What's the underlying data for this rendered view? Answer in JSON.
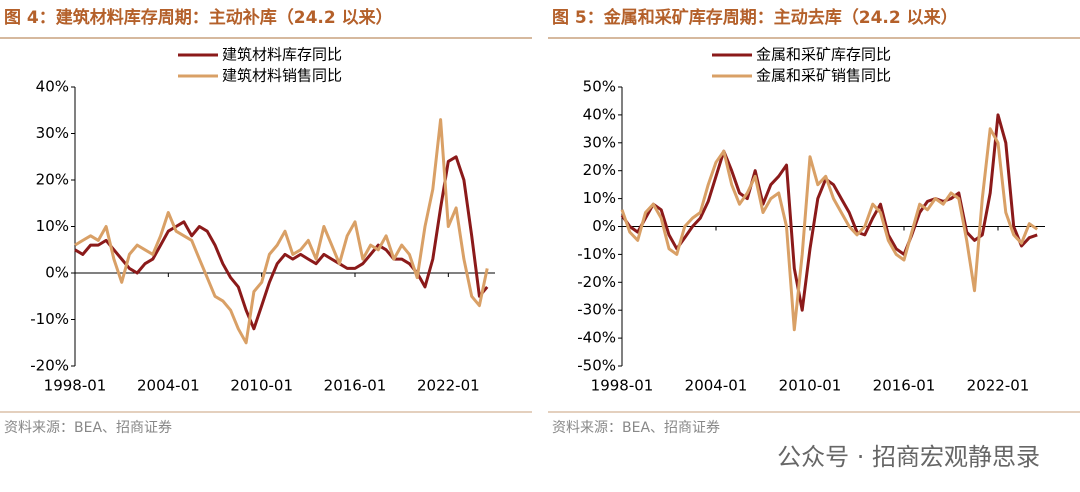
{
  "chart_data": [
    {
      "type": "line",
      "title": "图 4：建筑材料库存周期：主动补库（24.2 以来）",
      "source": "资料来源：BEA、招商证券",
      "x": [
        "1998-01",
        "1998-07",
        "1999-01",
        "1999-07",
        "2000-01",
        "2000-07",
        "2001-01",
        "2001-07",
        "2002-01",
        "2002-07",
        "2003-01",
        "2003-07",
        "2004-01",
        "2004-07",
        "2005-01",
        "2005-07",
        "2006-01",
        "2006-07",
        "2007-01",
        "2007-07",
        "2008-01",
        "2008-07",
        "2009-01",
        "2009-07",
        "2010-01",
        "2010-07",
        "2011-01",
        "2011-07",
        "2012-01",
        "2012-07",
        "2013-01",
        "2013-07",
        "2014-01",
        "2014-07",
        "2015-01",
        "2015-07",
        "2016-01",
        "2016-07",
        "2017-01",
        "2017-07",
        "2018-01",
        "2018-07",
        "2019-01",
        "2019-07",
        "2020-01",
        "2020-07",
        "2021-01",
        "2021-07",
        "2022-01",
        "2022-07",
        "2023-01",
        "2023-07",
        "2024-01",
        "2024-07"
      ],
      "series": [
        {
          "name": "建筑材料库存同比",
          "color": "#8b1a1a",
          "values": [
            5,
            4,
            6,
            6,
            7,
            5,
            3,
            1,
            0,
            2,
            3,
            6,
            9,
            10,
            11,
            8,
            10,
            9,
            6,
            2,
            -1,
            -3,
            -8,
            -12,
            -7,
            -2,
            2,
            4,
            3,
            4,
            3,
            2,
            4,
            3,
            2,
            1,
            1,
            2,
            4,
            6,
            5,
            3,
            3,
            2,
            0,
            -3,
            3,
            14,
            24,
            25,
            20,
            8,
            -5,
            -3
          ]
        },
        {
          "name": "建筑材料销售同比",
          "color": "#d9a066",
          "values": [
            6,
            7,
            8,
            7,
            10,
            3,
            -2,
            4,
            6,
            5,
            4,
            8,
            13,
            9,
            8,
            7,
            3,
            -1,
            -5,
            -6,
            -8,
            -12,
            -15,
            -4,
            -2,
            4,
            6,
            9,
            4,
            5,
            7,
            3,
            10,
            6,
            2,
            8,
            11,
            3,
            6,
            5,
            8,
            3,
            6,
            4,
            -1,
            10,
            18,
            33,
            10,
            14,
            3,
            -5,
            -7,
            1
          ]
        }
      ],
      "xlim": [
        "1998-01",
        "2025-01"
      ],
      "xticks": [
        "1998-01",
        "2004-01",
        "2010-01",
        "2016-01",
        "2022-01"
      ],
      "ylim": [
        -20,
        40
      ],
      "yticks": [
        {
          "value": -20,
          "label": "-20%"
        },
        {
          "value": -10,
          "label": "-10%"
        },
        {
          "value": 0,
          "label": "0%"
        },
        {
          "value": 10,
          "label": "10%"
        },
        {
          "value": 20,
          "label": "20%"
        },
        {
          "value": 30,
          "label": "30%"
        },
        {
          "value": 40,
          "label": "40%"
        }
      ]
    },
    {
      "type": "line",
      "title": "图 5：金属和采矿库存周期：主动去库（24.2 以来）",
      "source": "资料来源：BEA、招商证券",
      "x": [
        "1998-01",
        "1998-07",
        "1999-01",
        "1999-07",
        "2000-01",
        "2000-07",
        "2001-01",
        "2001-07",
        "2002-01",
        "2002-07",
        "2003-01",
        "2003-07",
        "2004-01",
        "2004-07",
        "2005-01",
        "2005-07",
        "2006-01",
        "2006-07",
        "2007-01",
        "2007-07",
        "2008-01",
        "2008-07",
        "2009-01",
        "2009-07",
        "2010-01",
        "2010-07",
        "2011-01",
        "2011-07",
        "2012-01",
        "2012-07",
        "2013-01",
        "2013-07",
        "2014-01",
        "2014-07",
        "2015-01",
        "2015-07",
        "2016-01",
        "2016-07",
        "2017-01",
        "2017-07",
        "2018-01",
        "2018-07",
        "2019-01",
        "2019-07",
        "2020-01",
        "2020-07",
        "2021-01",
        "2021-07",
        "2022-01",
        "2022-07",
        "2023-01",
        "2023-07",
        "2024-01",
        "2024-07"
      ],
      "series": [
        {
          "name": "金属和采矿库存同比",
          "color": "#8b1a1a",
          "values": [
            4,
            0,
            -2,
            3,
            8,
            6,
            -3,
            -8,
            -4,
            0,
            3,
            9,
            18,
            27,
            20,
            12,
            10,
            20,
            8,
            15,
            18,
            22,
            -15,
            -30,
            -8,
            10,
            17,
            15,
            10,
            5,
            -2,
            -3,
            3,
            8,
            -3,
            -8,
            -10,
            -3,
            5,
            9,
            10,
            9,
            10,
            12,
            -2,
            -5,
            -3,
            12,
            40,
            30,
            0,
            -7,
            -4,
            -3
          ]
        },
        {
          "name": "金属和采矿销售同比",
          "color": "#d9a066",
          "values": [
            6,
            -2,
            -5,
            5,
            8,
            3,
            -8,
            -10,
            0,
            3,
            5,
            15,
            23,
            27,
            15,
            8,
            12,
            18,
            5,
            10,
            12,
            0,
            -37,
            -10,
            25,
            15,
            18,
            10,
            5,
            0,
            -3,
            0,
            8,
            5,
            -5,
            -10,
            -12,
            -2,
            8,
            6,
            10,
            8,
            12,
            10,
            -5,
            -23,
            10,
            35,
            30,
            5,
            -3,
            -6,
            1,
            -1
          ]
        }
      ],
      "xlim": [
        "1998-01",
        "2025-01"
      ],
      "xticks": [
        "1998-01",
        "2004-01",
        "2010-01",
        "2016-01",
        "2022-01"
      ],
      "ylim": [
        -50,
        50
      ],
      "yticks": [
        {
          "value": -50,
          "label": "-50%"
        },
        {
          "value": -40,
          "label": "-40%"
        },
        {
          "value": -30,
          "label": "-30%"
        },
        {
          "value": -20,
          "label": "-20%"
        },
        {
          "value": -10,
          "label": "-10%"
        },
        {
          "value": 0,
          "label": "0%"
        },
        {
          "value": 10,
          "label": "10%"
        },
        {
          "value": 20,
          "label": "20%"
        },
        {
          "value": 30,
          "label": "30%"
        },
        {
          "value": 40,
          "label": "40%"
        },
        {
          "value": 50,
          "label": "50%"
        }
      ]
    }
  ],
  "watermark": "公众号 · 招商宏观静思录"
}
